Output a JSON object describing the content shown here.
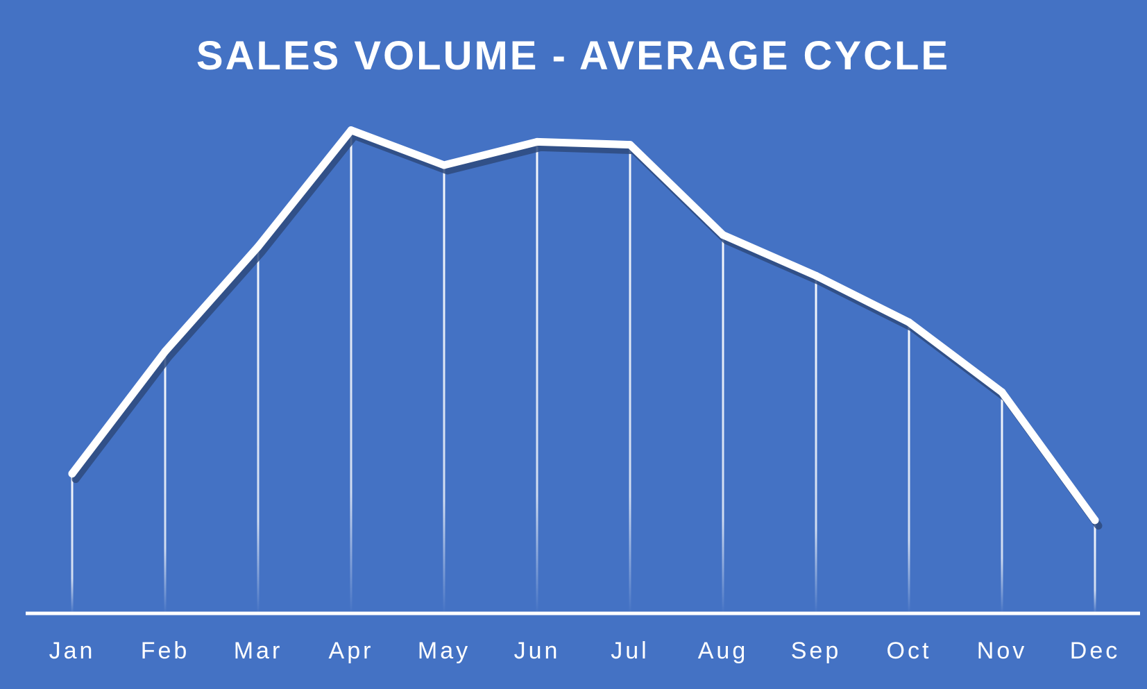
{
  "chart_data": {
    "type": "line",
    "title": "SALES VOLUME - AVERAGE CYCLE",
    "xlabel": "",
    "ylabel": "",
    "categories": [
      "Jan",
      "Feb",
      "Mar",
      "Apr",
      "May",
      "Jun",
      "Jul",
      "Aug",
      "Sep",
      "Oct",
      "Nov",
      "Dec"
    ],
    "series": [
      {
        "values": [
          24,
          45,
          63,
          83,
          77,
          81,
          80.5,
          65,
          58,
          50,
          38,
          16
        ]
      }
    ],
    "ylim": [
      0,
      100
    ],
    "grid": false,
    "drop_lines": true,
    "colors": {
      "background": "#4472C4",
      "line": "#FFFFFF",
      "shadow": "#2E4A7E",
      "axis": "#FFFFFF"
    }
  }
}
